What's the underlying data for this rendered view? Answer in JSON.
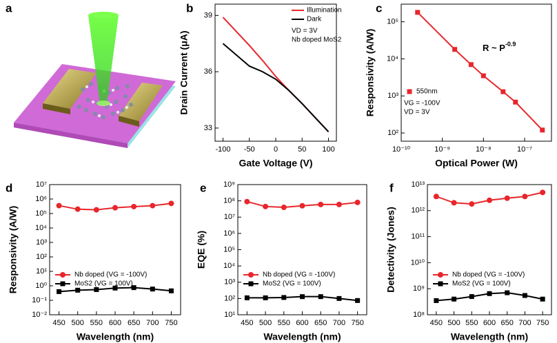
{
  "panel_a_label": "a",
  "chart_data": [
    {
      "type": "line",
      "panel_label": "b",
      "xlabel": "Gate Voltage (V)",
      "ylabel": "Drain Current (μA)",
      "x": [
        -100,
        -75,
        -50,
        -25,
        0,
        25,
        50,
        75,
        100
      ],
      "xlim": [
        -115,
        115
      ],
      "xticks": [
        -100,
        -50,
        0,
        50,
        100
      ],
      "ylim": [
        32.3,
        39.6
      ],
      "yticks": [
        33,
        36,
        39
      ],
      "legend": "upper-right",
      "series": [
        {
          "name": "Illumination",
          "color": "#e8262b",
          "marker": "none",
          "values": [
            38.9,
            38.15,
            37.4,
            36.6,
            35.75,
            35.0,
            34.3,
            33.55,
            32.8
          ]
        },
        {
          "name": "Dark",
          "color": "#000000",
          "marker": "none",
          "values": [
            37.5,
            36.9,
            36.3,
            36.0,
            35.6,
            35.0,
            34.3,
            33.55,
            32.8
          ]
        }
      ],
      "annotations": [
        "VD = 3V",
        "Nb doped MoS2"
      ]
    },
    {
      "type": "line",
      "panel_label": "c",
      "xlabel": "Optical Power (W)",
      "ylabel": "Responsivity (A/W)",
      "xscale": "log",
      "yscale": "log",
      "x": [
        2.5e-10,
        2e-09,
        5e-09,
        1e-08,
        3e-08,
        6e-08,
        2.7e-07
      ],
      "xlim": [
        1e-10,
        4.5e-07
      ],
      "xticks": [
        {
          "value": 1e-10,
          "label": "10⁻¹⁰"
        },
        {
          "value": 1e-09,
          "label": "10⁻⁹"
        },
        {
          "value": 1e-08,
          "label": "10⁻⁸"
        },
        {
          "value": 1e-07,
          "label": "10⁻⁷"
        }
      ],
      "ylim": [
        60,
        300000
      ],
      "yticks": [
        {
          "value": 100,
          "label": "10²"
        },
        {
          "value": 1000,
          "label": "10³"
        },
        {
          "value": 10000,
          "label": "10⁴"
        },
        {
          "value": 100000,
          "label": "10⁵"
        }
      ],
      "legend": "lower-left",
      "series": [
        {
          "name": "550nm",
          "color": "#e8262b",
          "marker": "square",
          "values": [
            180000,
            18000,
            7000,
            3500,
            1300,
            680,
            120
          ]
        }
      ],
      "annotations": [
        "VG = -100V",
        "VD = 3V"
      ],
      "formula": {
        "base": "R ~ P",
        "exponent": "-0.9"
      }
    },
    {
      "type": "line",
      "panel_label": "d",
      "xlabel": "Wavelength (nm)",
      "ylabel": "Responsivity (A/W)",
      "yscale": "log",
      "x": [
        450,
        500,
        550,
        600,
        650,
        700,
        750
      ],
      "xlim": [
        425,
        775
      ],
      "xticks": [
        450,
        500,
        550,
        600,
        650,
        700,
        750
      ],
      "ylim": [
        0.01,
        10000000
      ],
      "yticks": [
        {
          "value": 0.01,
          "label": "10⁻²"
        },
        {
          "value": 0.1,
          "label": "10⁻¹"
        },
        {
          "value": 1,
          "label": "10⁰"
        },
        {
          "value": 10,
          "label": "10¹"
        },
        {
          "value": 100,
          "label": "10²"
        },
        {
          "value": 1000,
          "label": "10³"
        },
        {
          "value": 10000,
          "label": "10⁴"
        },
        {
          "value": 100000,
          "label": "10⁵"
        },
        {
          "value": 1000000,
          "label": "10⁶"
        },
        {
          "value": 10000000,
          "label": "10⁷"
        }
      ],
      "legend": "lower-left",
      "series": [
        {
          "name": "Nb doped (VG = -100V)",
          "color": "#e8262b",
          "marker": "circle",
          "values": [
            350000,
            200000,
            180000,
            250000,
            300000,
            350000,
            500000
          ]
        },
        {
          "name": "MoS2 (VG = 100V)",
          "color": "#000000",
          "marker": "square",
          "values": [
            0.4,
            0.5,
            0.55,
            0.7,
            0.75,
            0.6,
            0.45
          ]
        }
      ]
    },
    {
      "type": "line",
      "panel_label": "e",
      "xlabel": "Wavelength (nm)",
      "ylabel": "EQE (%)",
      "yscale": "log",
      "x": [
        450,
        500,
        550,
        600,
        650,
        700,
        750
      ],
      "xlim": [
        425,
        775
      ],
      "xticks": [
        450,
        500,
        550,
        600,
        650,
        700,
        750
      ],
      "ylim": [
        10,
        1000000000
      ],
      "yticks": [
        {
          "value": 10,
          "label": "10¹"
        },
        {
          "value": 100,
          "label": "10²"
        },
        {
          "value": 1000,
          "label": "10³"
        },
        {
          "value": 10000,
          "label": "10⁴"
        },
        {
          "value": 100000,
          "label": "10⁵"
        },
        {
          "value": 1000000,
          "label": "10⁶"
        },
        {
          "value": 10000000,
          "label": "10⁷"
        },
        {
          "value": 100000000,
          "label": "10⁸"
        },
        {
          "value": 1000000000,
          "label": "10⁹"
        }
      ],
      "legend": "lower-left",
      "series": [
        {
          "name": "Nb doped (VG = -100V)",
          "color": "#e8262b",
          "marker": "circle",
          "values": [
            90000000,
            45000000,
            40000000,
            50000000,
            60000000,
            60000000,
            80000000
          ]
        },
        {
          "name": "MoS2 (VG = 100V)",
          "color": "#000000",
          "marker": "square",
          "values": [
            110,
            110,
            115,
            130,
            130,
            100,
            75
          ]
        }
      ]
    },
    {
      "type": "line",
      "panel_label": "f",
      "xlabel": "Wavelength (nm)",
      "ylabel": "Detectivity (Jones)",
      "yscale": "log",
      "x": [
        450,
        500,
        550,
        600,
        650,
        700,
        750
      ],
      "xlim": [
        425,
        775
      ],
      "xticks": [
        450,
        500,
        550,
        600,
        650,
        700,
        750
      ],
      "ylim": [
        100000000,
        10000000000000
      ],
      "yticks": [
        {
          "value": 100000000,
          "label": "10⁸"
        },
        {
          "value": 1000000000,
          "label": "10⁹"
        },
        {
          "value": 10000000000,
          "label": "10¹⁰"
        },
        {
          "value": 100000000000,
          "label": "10¹¹"
        },
        {
          "value": 1000000000000,
          "label": "10¹²"
        },
        {
          "value": 10000000000000,
          "label": "10¹³"
        }
      ],
      "legend": "lower-left",
      "series": [
        {
          "name": "Nb doped (VG = -100V)",
          "color": "#e8262b",
          "marker": "circle",
          "values": [
            3500000000000,
            2000000000000,
            1800000000000,
            2500000000000,
            3000000000000,
            3500000000000,
            5000000000000
          ]
        },
        {
          "name": "MoS2 (VG = 100V)",
          "color": "#000000",
          "marker": "square",
          "values": [
            350000000,
            400000000,
            500000000,
            650000000,
            700000000,
            550000000,
            400000000
          ]
        }
      ]
    }
  ]
}
